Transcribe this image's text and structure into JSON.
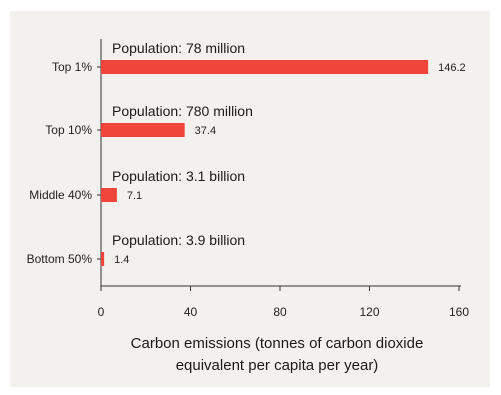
{
  "chart_data": {
    "type": "bar",
    "orientation": "horizontal",
    "categories": [
      "Top 1%",
      "Top 10%",
      "Middle 40%",
      "Bottom 50%"
    ],
    "values": [
      146.2,
      37.4,
      7.1,
      1.4
    ],
    "value_labels": [
      "146.2",
      "37.4",
      "7.1",
      "1.4"
    ],
    "annotations": [
      "Population: 78 million",
      "Population: 780 million",
      "Population: 3.1 billion",
      "Population: 3.9 billion"
    ],
    "xlabel_lines": [
      "Carbon emissions (tonnes of carbon dioxide",
      "equivalent per capita per year)"
    ],
    "xticks": [
      0,
      40,
      80,
      120,
      160
    ],
    "xlim": [
      0,
      160
    ],
    "grid": false,
    "bar_color": "#f0453a",
    "background_color": "#f3f1ed"
  }
}
